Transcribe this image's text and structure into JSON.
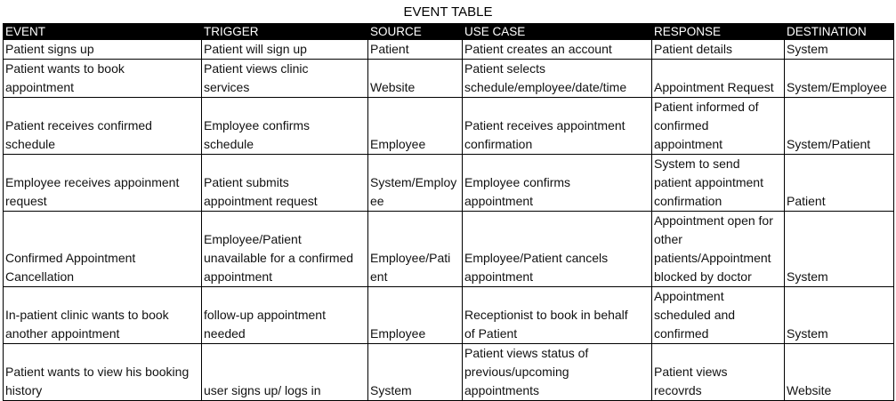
{
  "title": "EVENT TABLE",
  "headers": [
    "EVENT",
    "TRIGGER",
    "SOURCE",
    "USE CASE",
    "RESPONSE",
    "DESTINATION"
  ],
  "rows": [
    {
      "event": "Patient signs up",
      "trigger": "Patient will sign up",
      "source": "Patient",
      "use_case": "Patient creates an account",
      "response": "Patient details",
      "destination": "System"
    },
    {
      "event": "Patient wants to book\nappointment",
      "trigger": "Patient  views clinic\nservices",
      "source": "Website",
      "use_case": "Patient selects\nschedule/employee/date/time",
      "response": "Appointment Request",
      "destination": "System/Employee"
    },
    {
      "event": "Patient receives confirmed\nschedule",
      "trigger": "Employee confirms\nschedule",
      "source": "Employee",
      "use_case": "Patient receives appointment\nconfirmation",
      "response": "Patient informed of\nconfirmed\nappointment",
      "destination": "System/Patient"
    },
    {
      "event": "Employee receives appoinment\nrequest",
      "trigger": "Patient submits\nappointment request",
      "source": "System/Employ\nee",
      "use_case": "Employee confirms\nappointment",
      "response": "System to send\npatient appointment\nconfirmation",
      "destination": "Patient"
    },
    {
      "event": "Confirmed Appointment\nCancellation",
      "trigger": "Employee/Patient\nunavailable for a confirmed\nappointment",
      "source": "Employee/Pati\nent",
      "use_case": "Employee/Patient cancels\nappointment",
      "response": "Appointment open for\nother\npatients/Appointment\nblocked by doctor",
      "destination": "System"
    },
    {
      "event": "In-patient clinic wants to book\nanother appointment",
      "trigger": "follow-up appointment\nneeded",
      "source": "Employee",
      "use_case": "Receptionist to book in behalf\nof Patient",
      "response": "Appointment\nscheduled and\nconfirmed",
      "destination": "System"
    },
    {
      "event": "Patient wants to view his booking\nhistory",
      "trigger": "user signs up/ logs in",
      "source": "System",
      "use_case": "Patient views status of\nprevious/upcoming\nappointments",
      "response": "Patient views\nrecovrds",
      "destination": "Website"
    }
  ]
}
